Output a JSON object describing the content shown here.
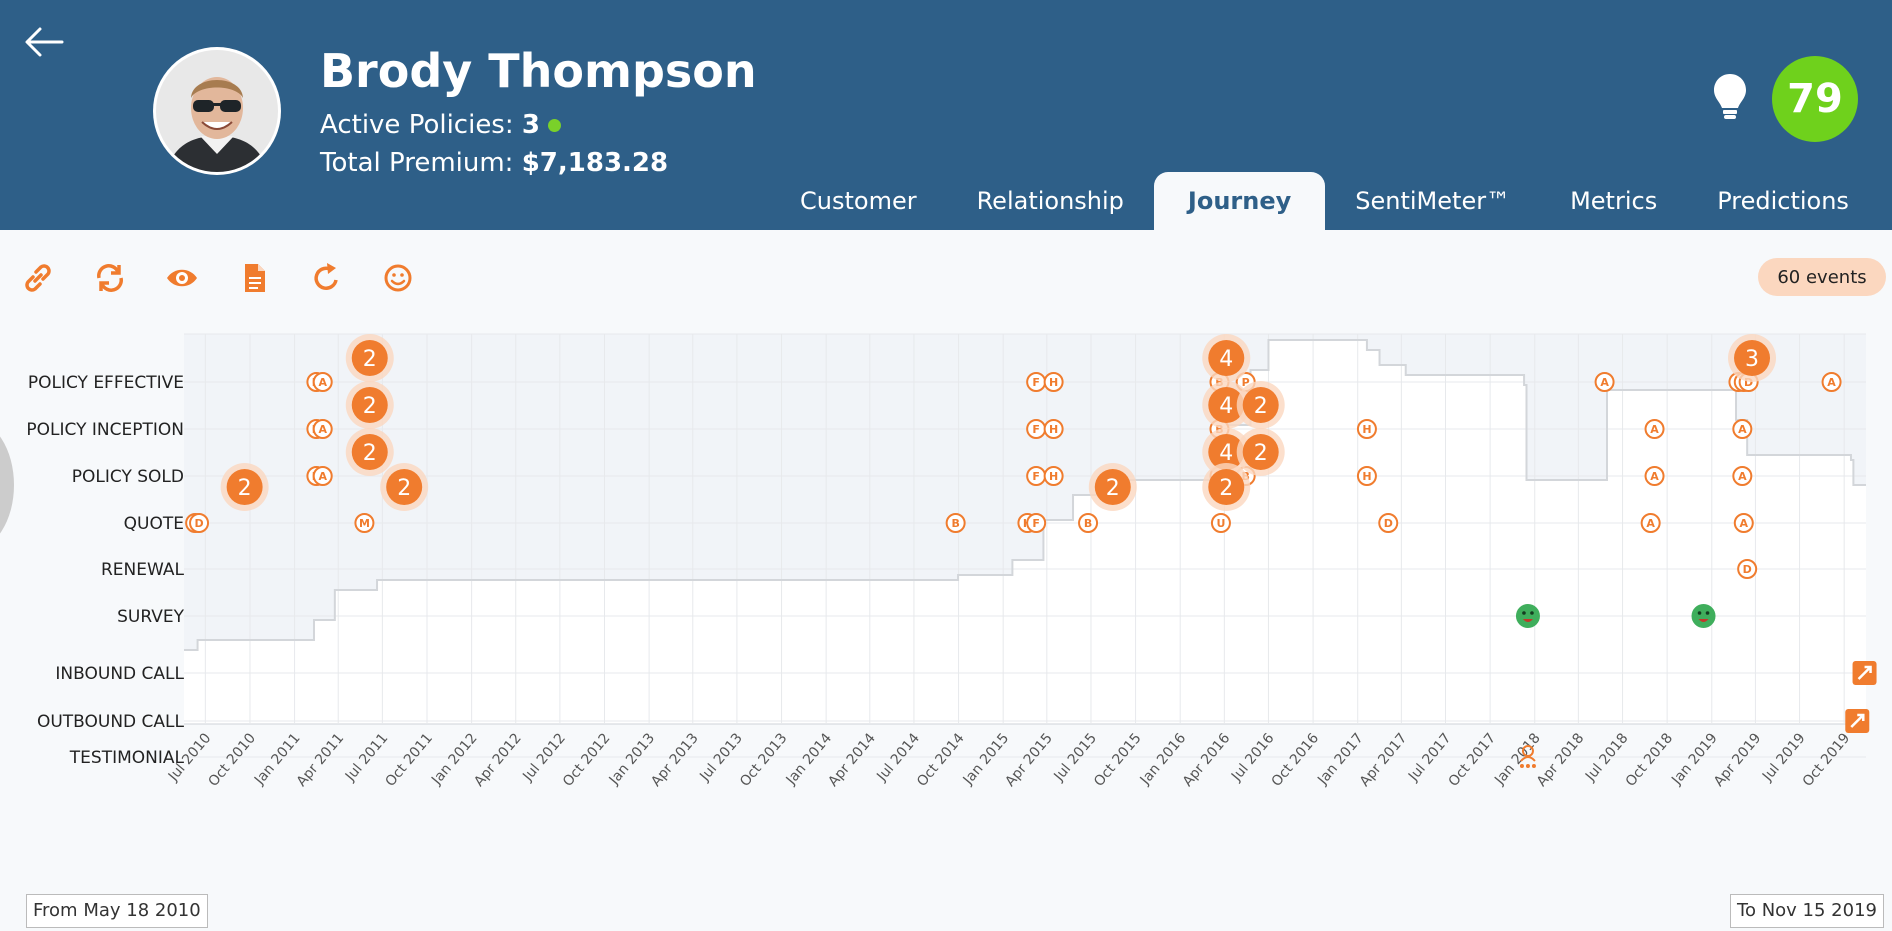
{
  "profile": {
    "name": "Brody Thompson",
    "active_label": "Active Policies:",
    "active_value": "3",
    "premium_label": "Total Premium:",
    "premium_value": "$7,183.28",
    "score": "79"
  },
  "tabs": [
    {
      "label": "Customer",
      "active": false
    },
    {
      "label": "Relationship",
      "active": false
    },
    {
      "label": "Journey",
      "active": true
    },
    {
      "label": "SentiMeter™",
      "active": false
    },
    {
      "label": "Metrics",
      "active": false
    },
    {
      "label": "Predictions",
      "active": false
    }
  ],
  "toolbar": {
    "icons": [
      "link-icon",
      "sync-icon",
      "eye-icon",
      "document-icon",
      "refresh-icon",
      "smiley-icon"
    ],
    "events_badge": "60 events"
  },
  "range": {
    "from": "From May 18 2010",
    "to": "To Nov 15 2019"
  },
  "colors": {
    "header": "#2e5f88",
    "accent": "#f07c2e",
    "score": "#6fd11c",
    "survey": "#3fae5c"
  },
  "chart_data": {
    "type": "scatter",
    "x_start": "2010-05-18",
    "x_end": "2019-11-15",
    "xticks": [
      "Jul 2010",
      "Oct 2010",
      "Jan 2011",
      "Apr 2011",
      "Jul 2011",
      "Oct 2011",
      "Jan 2012",
      "Apr 2012",
      "Jul 2012",
      "Oct 2012",
      "Jan 2013",
      "Apr 2013",
      "Jul 2013",
      "Oct 2013",
      "Jan 2014",
      "Apr 2014",
      "Jul 2014",
      "Oct 2014",
      "Jan 2015",
      "Apr 2015",
      "Jul 2015",
      "Oct 2015",
      "Jan 2016",
      "Apr 2016",
      "Jul 2016",
      "Oct 2016",
      "Jan 2017",
      "Apr 2017",
      "Jul 2017",
      "Oct 2017",
      "Jan 2018",
      "Apr 2018",
      "Jul 2018",
      "Oct 2018",
      "Jan 2019",
      "Apr 2019",
      "Jul 2019",
      "Oct 2019"
    ],
    "categories": [
      "POLICY EFFECTIVE",
      "POLICY INCEPTION",
      "POLICY SOLD",
      "QUOTE",
      "RENEWAL",
      "SURVEY",
      "INBOUND CALL",
      "OUTBOUND CALL",
      "TESTIMONIAL"
    ],
    "events": [
      {
        "date": "2010-06-10",
        "cat": "QUOTE",
        "letter": "H"
      },
      {
        "date": "2010-06-18",
        "cat": "QUOTE",
        "letter": "D"
      },
      {
        "date": "2011-02-15",
        "cat": "POLICY EFFECTIVE",
        "letter": "H"
      },
      {
        "date": "2011-02-28",
        "cat": "POLICY EFFECTIVE",
        "letter": "A"
      },
      {
        "date": "2011-02-15",
        "cat": "POLICY INCEPTION",
        "letter": "H"
      },
      {
        "date": "2011-02-28",
        "cat": "POLICY INCEPTION",
        "letter": "A"
      },
      {
        "date": "2011-02-15",
        "cat": "POLICY SOLD",
        "letter": "H"
      },
      {
        "date": "2011-02-28",
        "cat": "POLICY SOLD",
        "letter": "A"
      },
      {
        "date": "2011-05-25",
        "cat": "QUOTE",
        "letter": "M"
      },
      {
        "date": "2014-09-25",
        "cat": "QUOTE",
        "letter": "B"
      },
      {
        "date": "2015-02-20",
        "cat": "QUOTE",
        "letter": "H"
      },
      {
        "date": "2015-03-10",
        "cat": "QUOTE",
        "letter": "F"
      },
      {
        "date": "2015-03-10",
        "cat": "POLICY EFFECTIVE",
        "letter": "F"
      },
      {
        "date": "2015-04-15",
        "cat": "POLICY EFFECTIVE",
        "letter": "H"
      },
      {
        "date": "2015-03-10",
        "cat": "POLICY INCEPTION",
        "letter": "F"
      },
      {
        "date": "2015-04-15",
        "cat": "POLICY INCEPTION",
        "letter": "H"
      },
      {
        "date": "2015-03-10",
        "cat": "POLICY SOLD",
        "letter": "F"
      },
      {
        "date": "2015-04-15",
        "cat": "POLICY SOLD",
        "letter": "H"
      },
      {
        "date": "2015-06-25",
        "cat": "QUOTE",
        "letter": "B"
      },
      {
        "date": "2016-03-25",
        "cat": "QUOTE",
        "letter": "U"
      },
      {
        "date": "2016-03-22",
        "cat": "POLICY EFFECTIVE",
        "letter": "B"
      },
      {
        "date": "2016-05-15",
        "cat": "POLICY EFFECTIVE",
        "letter": "P"
      },
      {
        "date": "2016-03-22",
        "cat": "POLICY INCEPTION",
        "letter": "B"
      },
      {
        "date": "2016-03-22",
        "cat": "POLICY SOLD",
        "letter": "B"
      },
      {
        "date": "2016-05-15",
        "cat": "POLICY SOLD",
        "letter": "B"
      },
      {
        "date": "2017-01-20",
        "cat": "POLICY INCEPTION",
        "letter": "H"
      },
      {
        "date": "2017-01-20",
        "cat": "POLICY SOLD",
        "letter": "H"
      },
      {
        "date": "2017-03-05",
        "cat": "QUOTE",
        "letter": "D"
      },
      {
        "date": "2018-05-25",
        "cat": "POLICY EFFECTIVE",
        "letter": "A"
      },
      {
        "date": "2018-09-05",
        "cat": "POLICY INCEPTION",
        "letter": "A"
      },
      {
        "date": "2018-09-05",
        "cat": "POLICY SOLD",
        "letter": "A"
      },
      {
        "date": "2018-08-28",
        "cat": "QUOTE",
        "letter": "A"
      },
      {
        "date": "2019-02-25",
        "cat": "POLICY EFFECTIVE",
        "letter": "H"
      },
      {
        "date": "2019-03-08",
        "cat": "POLICY EFFECTIVE",
        "letter": "A"
      },
      {
        "date": "2019-03-18",
        "cat": "POLICY EFFECTIVE",
        "letter": "D"
      },
      {
        "date": "2019-03-05",
        "cat": "POLICY INCEPTION",
        "letter": "A"
      },
      {
        "date": "2019-03-05",
        "cat": "POLICY SOLD",
        "letter": "A"
      },
      {
        "date": "2019-03-08",
        "cat": "QUOTE",
        "letter": "A"
      },
      {
        "date": "2019-03-15",
        "cat": "RENEWAL",
        "letter": "D"
      },
      {
        "date": "2019-09-05",
        "cat": "POLICY EFFECTIVE",
        "letter": "A"
      }
    ],
    "clusters": [
      {
        "date": "2011-06-05",
        "cat": "POLICY EFFECTIVE",
        "count": 2
      },
      {
        "date": "2011-06-05",
        "cat": "POLICY INCEPTION",
        "count": 2
      },
      {
        "date": "2011-06-05",
        "cat": "POLICY SOLD",
        "count": 2
      },
      {
        "date": "2010-09-20",
        "cat": "QUOTE",
        "count": 2
      },
      {
        "date": "2011-08-15",
        "cat": "QUOTE",
        "count": 2
      },
      {
        "date": "2015-08-15",
        "cat": "QUOTE",
        "count": 2
      },
      {
        "date": "2016-04-05",
        "cat": "POLICY EFFECTIVE",
        "count": 4
      },
      {
        "date": "2016-04-05",
        "cat": "POLICY INCEPTION",
        "count": 4
      },
      {
        "date": "2016-04-05",
        "cat": "POLICY SOLD",
        "count": 4
      },
      {
        "date": "2016-06-15",
        "cat": "POLICY INCEPTION",
        "count": 2
      },
      {
        "date": "2016-06-15",
        "cat": "POLICY SOLD",
        "count": 2
      },
      {
        "date": "2016-04-05",
        "cat": "QUOTE",
        "count": 2
      },
      {
        "date": "2019-03-25",
        "cat": "POLICY EFFECTIVE",
        "count": 3
      }
    ],
    "surveys": [
      "2017-12-18",
      "2018-12-15"
    ],
    "inbound_calls": [
      "2019-11-12"
    ],
    "outbound_calls": [
      "2019-10-28"
    ],
    "testimonials": [
      "2017-12-18"
    ],
    "trend_line": [
      [
        "2010-05-18",
        1.3
      ],
      [
        "2010-06-15",
        1.4
      ],
      [
        "2011-02-10",
        1.6
      ],
      [
        "2011-03-25",
        1.9
      ],
      [
        "2011-06-20",
        2.0
      ],
      [
        "2014-09-30",
        2.05
      ],
      [
        "2015-01-20",
        2.2
      ],
      [
        "2015-03-25",
        2.6
      ],
      [
        "2015-05-25",
        2.85
      ],
      [
        "2015-07-30",
        3.0
      ],
      [
        "2016-03-20",
        3.55
      ],
      [
        "2016-05-25",
        4.1
      ],
      [
        "2016-07-01",
        4.4
      ],
      [
        "2017-01-20",
        4.3
      ],
      [
        "2017-02-15",
        4.15
      ],
      [
        "2017-04-10",
        4.05
      ],
      [
        "2017-12-10",
        3.95
      ],
      [
        "2017-12-15",
        3.0
      ],
      [
        "2018-05-25",
        3.0
      ],
      [
        "2018-05-30",
        3.9
      ],
      [
        "2019-02-15",
        3.9
      ],
      [
        "2019-02-20",
        3.6
      ],
      [
        "2019-03-15",
        3.25
      ],
      [
        "2019-10-15",
        3.2
      ],
      [
        "2019-10-20",
        2.95
      ]
    ]
  }
}
